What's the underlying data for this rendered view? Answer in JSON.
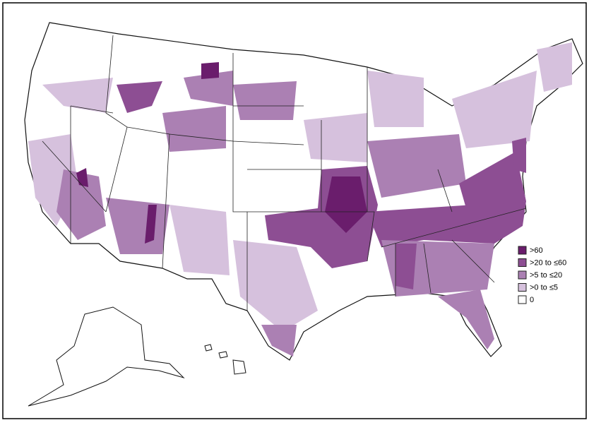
{
  "legend": {
    "items": [
      {
        "label": ">60",
        "color": "#6a1d6c"
      },
      {
        "label": ">20 to ≤60",
        "color": "#8d4e93"
      },
      {
        "label": ">5 to ≤20",
        "color": "#ab80b3"
      },
      {
        "label": ">0 to ≤5",
        "color": "#d6c1dd"
      },
      {
        "label": "0",
        "color": "#ffffff"
      }
    ]
  }
}
